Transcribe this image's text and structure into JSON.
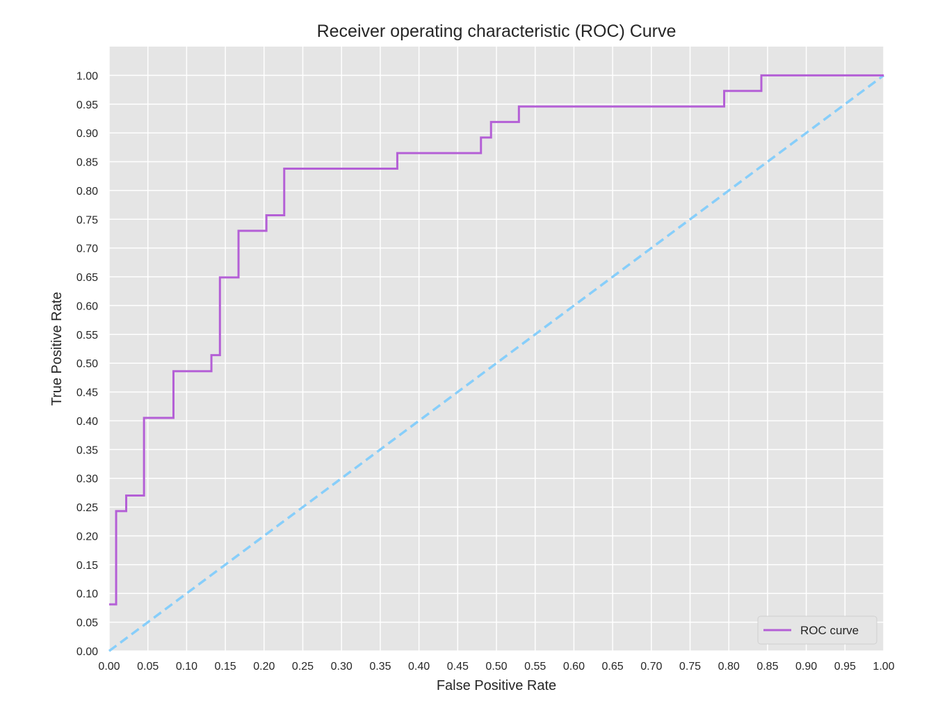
{
  "chart_data": {
    "type": "line",
    "title": "Receiver operating characteristic (ROC) Curve",
    "xlabel": "False Positive Rate",
    "ylabel": "True Positive Rate",
    "xlim": [
      0,
      1
    ],
    "ylim": [
      0,
      1.05
    ],
    "xticks": [
      0.0,
      0.05,
      0.1,
      0.15,
      0.2,
      0.25,
      0.3,
      0.35,
      0.4,
      0.45,
      0.5,
      0.55,
      0.6,
      0.65,
      0.7,
      0.75,
      0.8,
      0.85,
      0.9,
      0.95,
      1.0
    ],
    "yticks": [
      0.0,
      0.05,
      0.1,
      0.15,
      0.2,
      0.25,
      0.3,
      0.35,
      0.4,
      0.45,
      0.5,
      0.55,
      0.6,
      0.65,
      0.7,
      0.75,
      0.8,
      0.85,
      0.9,
      0.95,
      1.0
    ],
    "xtick_labels": [
      "0.00",
      "0.05",
      "0.10",
      "0.15",
      "0.20",
      "0.25",
      "0.30",
      "0.35",
      "0.40",
      "0.45",
      "0.50",
      "0.55",
      "0.60",
      "0.65",
      "0.70",
      "0.75",
      "0.80",
      "0.85",
      "0.90",
      "0.95",
      "1.00"
    ],
    "ytick_labels": [
      "0.00",
      "0.05",
      "0.10",
      "0.15",
      "0.20",
      "0.25",
      "0.30",
      "0.35",
      "0.40",
      "0.45",
      "0.50",
      "0.55",
      "0.60",
      "0.65",
      "0.70",
      "0.75",
      "0.80",
      "0.85",
      "0.90",
      "0.95",
      "1.00"
    ],
    "grid": true,
    "legend_position": "lower-right",
    "colors": {
      "background": "#e5e5e5",
      "grid": "#ffffff",
      "roc": "#b45fd6",
      "diagonal": "#87cefa"
    },
    "series": [
      {
        "name": "ROC curve",
        "style": "solid",
        "x": [
          0.0,
          0.009,
          0.009,
          0.022,
          0.022,
          0.045,
          0.045,
          0.083,
          0.083,
          0.132,
          0.132,
          0.143,
          0.143,
          0.167,
          0.167,
          0.203,
          0.203,
          0.226,
          0.226,
          0.372,
          0.372,
          0.48,
          0.48,
          0.493,
          0.493,
          0.529,
          0.529,
          0.794,
          0.794,
          0.842,
          0.842,
          1.0
        ],
        "y": [
          0.081,
          0.081,
          0.243,
          0.243,
          0.27,
          0.27,
          0.405,
          0.405,
          0.486,
          0.486,
          0.514,
          0.514,
          0.649,
          0.649,
          0.73,
          0.73,
          0.757,
          0.757,
          0.838,
          0.838,
          0.865,
          0.865,
          0.892,
          0.892,
          0.919,
          0.919,
          0.946,
          0.946,
          0.973,
          0.973,
          1.0,
          1.0
        ]
      },
      {
        "style": "dashed",
        "x": [
          0.0,
          1.0
        ],
        "y": [
          0.0,
          1.0
        ]
      }
    ]
  }
}
